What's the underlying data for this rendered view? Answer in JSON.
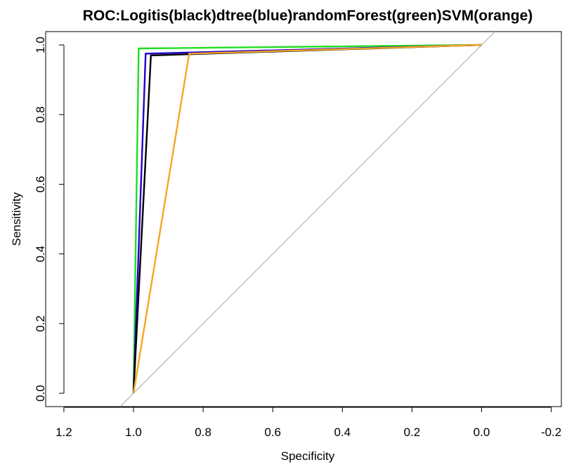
{
  "chart_data": {
    "type": "line",
    "title": "ROC:Logitis(black)dtree(blue)randomForest(green)SVM(orange)",
    "xlabel": "Specificity",
    "ylabel": "Sensitivity",
    "xlim": [
      1.2,
      -0.2
    ],
    "ylim": [
      0.0,
      1.0
    ],
    "x_reversed": true,
    "x_ticks": [
      1.2,
      1.0,
      0.8,
      0.6,
      0.4,
      0.2,
      0.0,
      -0.2
    ],
    "x_tick_labels": [
      "1.2",
      "1.0",
      "0.8",
      "0.6",
      "0.4",
      "0.2",
      "0.0",
      "-0.2"
    ],
    "y_ticks": [
      0.0,
      0.2,
      0.4,
      0.6,
      0.8,
      1.0
    ],
    "y_tick_labels": [
      "0.0",
      "0.2",
      "0.4",
      "0.6",
      "0.8",
      "1.0"
    ],
    "grid": false,
    "reference_line": {
      "x": [
        1.0,
        0.0
      ],
      "y": [
        0.0,
        1.0
      ],
      "color": "#b3b3b3"
    },
    "series": [
      {
        "color": "#22dd22",
        "x": [
          1.0,
          0.985,
          0.0
        ],
        "y": [
          0.0,
          0.99,
          1.0
        ]
      },
      {
        "color": "#2200cc",
        "x": [
          1.0,
          0.965,
          0.0
        ],
        "y": [
          0.0,
          0.975,
          1.0
        ]
      },
      {
        "color": "#000000",
        "x": [
          1.0,
          0.95,
          0.0
        ],
        "y": [
          0.0,
          0.97,
          1.0
        ]
      },
      {
        "color": "#f5a623",
        "x": [
          1.0,
          0.84,
          0.0
        ],
        "y": [
          0.0,
          0.975,
          1.0
        ]
      }
    ]
  }
}
